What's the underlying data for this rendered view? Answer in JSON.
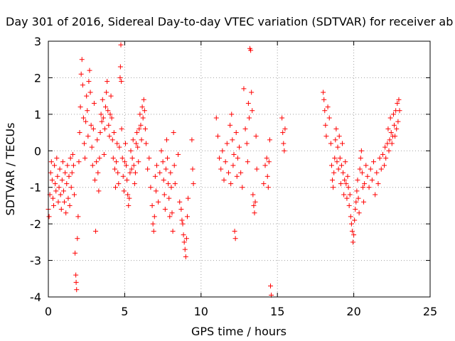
{
  "chart_data": {
    "type": "scatter",
    "title": "Day 301 of 2016, Sidereal Day-to-day VTEC variation (SDTVAR) for receiver ab",
    "xlabel": "GPS time / hours",
    "ylabel": "SDTVAR / TECUs",
    "xlim": [
      0,
      25
    ],
    "ylim": [
      -4,
      3
    ],
    "xticks": [
      0,
      5,
      10,
      15,
      20,
      25
    ],
    "yticks": [
      -4,
      -3,
      -2,
      -1,
      0,
      1,
      2,
      3
    ],
    "grid": true,
    "marker": "+",
    "series": [
      {
        "name": "SDTVAR",
        "color": "#ff0000",
        "points": [
          [
            0.0,
            -1.6
          ],
          [
            0.05,
            -1.8
          ],
          [
            0.1,
            -1.2
          ],
          [
            0.15,
            -0.6
          ],
          [
            0.2,
            -0.3
          ],
          [
            0.25,
            -0.8
          ],
          [
            0.3,
            -1.3
          ],
          [
            0.35,
            -1.5
          ],
          [
            0.4,
            -0.4
          ],
          [
            0.45,
            -0.9
          ],
          [
            0.5,
            -1.1
          ],
          [
            0.55,
            -0.2
          ],
          [
            0.6,
            -0.7
          ],
          [
            0.65,
            -1.4
          ],
          [
            0.7,
            -1.0
          ],
          [
            0.75,
            -0.5
          ],
          [
            0.8,
            -1.2
          ],
          [
            0.85,
            -1.6
          ],
          [
            0.9,
            -0.8
          ],
          [
            0.95,
            -0.3
          ],
          [
            1.0,
            -1.1
          ],
          [
            1.05,
            -1.4
          ],
          [
            1.1,
            -0.6
          ],
          [
            1.15,
            -1.7
          ],
          [
            1.2,
            -0.9
          ],
          [
            1.25,
            -0.4
          ],
          [
            1.3,
            -1.3
          ],
          [
            1.35,
            -0.7
          ],
          [
            1.4,
            -1.5
          ],
          [
            1.45,
            -0.2
          ],
          [
            1.5,
            -1.0
          ],
          [
            1.55,
            -0.6
          ],
          [
            1.6,
            -0.1
          ],
          [
            1.65,
            -0.4
          ],
          [
            1.7,
            -1.2
          ],
          [
            1.75,
            -2.8
          ],
          [
            1.8,
            -3.4
          ],
          [
            1.82,
            -3.6
          ],
          [
            1.85,
            -3.8
          ],
          [
            1.9,
            -2.4
          ],
          [
            1.95,
            -1.8
          ],
          [
            2.0,
            -0.3
          ],
          [
            2.05,
            0.5
          ],
          [
            2.1,
            1.2
          ],
          [
            2.15,
            2.1
          ],
          [
            2.2,
            2.5
          ],
          [
            2.25,
            1.8
          ],
          [
            2.3,
            0.9
          ],
          [
            2.35,
            0.2
          ],
          [
            2.4,
            -0.2
          ],
          [
            2.45,
            0.8
          ],
          [
            2.5,
            1.5
          ],
          [
            2.55,
            1.1
          ],
          [
            2.6,
            0.4
          ],
          [
            2.65,
            1.9
          ],
          [
            2.7,
            2.2
          ],
          [
            2.75,
            1.6
          ],
          [
            2.8,
            0.7
          ],
          [
            2.85,
            0.1
          ],
          [
            2.9,
            -0.4
          ],
          [
            2.95,
            0.6
          ],
          [
            3.0,
            1.3
          ],
          [
            3.05,
            -0.8
          ],
          [
            3.1,
            -2.2
          ],
          [
            3.15,
            -0.3
          ],
          [
            3.2,
            0.3
          ],
          [
            3.25,
            -0.6
          ],
          [
            3.3,
            -1.1
          ],
          [
            3.35,
            -0.2
          ],
          [
            3.4,
            0.5
          ],
          [
            3.45,
            1.0
          ],
          [
            3.5,
            0.8
          ],
          [
            3.55,
            1.4
          ],
          [
            3.6,
            0.9
          ],
          [
            3.65,
            -0.1
          ],
          [
            3.7,
            0.6
          ],
          [
            3.75,
            1.2
          ],
          [
            3.8,
            1.6
          ],
          [
            3.85,
            1.9
          ],
          [
            3.9,
            1.1
          ],
          [
            3.95,
            0.7
          ],
          [
            4.0,
            0.4
          ],
          [
            4.05,
            1.0
          ],
          [
            4.1,
            1.5
          ],
          [
            4.15,
            0.9
          ],
          [
            4.2,
            0.3
          ],
          [
            4.25,
            -0.2
          ],
          [
            4.3,
            0.5
          ],
          [
            4.35,
            -0.5
          ],
          [
            4.4,
            -1.0
          ],
          [
            4.45,
            -0.3
          ],
          [
            4.5,
            0.2
          ],
          [
            4.55,
            -0.6
          ],
          [
            4.6,
            -0.9
          ],
          [
            4.65,
            0.1
          ],
          [
            4.7,
            2.0
          ],
          [
            4.72,
            2.3
          ],
          [
            4.75,
            2.9
          ],
          [
            4.78,
            1.9
          ],
          [
            4.8,
            0.6
          ],
          [
            4.85,
            -0.2
          ],
          [
            4.9,
            -0.7
          ],
          [
            4.95,
            -1.1
          ],
          [
            5.0,
            -0.3
          ],
          [
            5.05,
            0.2
          ],
          [
            5.1,
            -0.4
          ],
          [
            5.15,
            -0.8
          ],
          [
            5.2,
            -1.2
          ],
          [
            5.25,
            -1.5
          ],
          [
            5.3,
            -1.3
          ],
          [
            5.35,
            -0.6
          ],
          [
            5.4,
            0.0
          ],
          [
            5.45,
            -0.5
          ],
          [
            5.5,
            -0.2
          ],
          [
            5.55,
            0.3
          ],
          [
            5.6,
            -0.4
          ],
          [
            5.65,
            -0.9
          ],
          [
            5.7,
            -0.6
          ],
          [
            5.75,
            0.2
          ],
          [
            5.8,
            0.5
          ],
          [
            5.85,
            0.1
          ],
          [
            5.9,
            -0.3
          ],
          [
            5.95,
            0.6
          ],
          [
            6.0,
            1.0
          ],
          [
            6.05,
            0.7
          ],
          [
            6.1,
            0.3
          ],
          [
            6.15,
            1.2
          ],
          [
            6.2,
            0.9
          ],
          [
            6.25,
            1.4
          ],
          [
            6.3,
            1.1
          ],
          [
            6.35,
            0.6
          ],
          [
            6.4,
            0.2
          ],
          [
            6.5,
            -0.5
          ],
          [
            6.6,
            -0.2
          ],
          [
            6.7,
            -1.0
          ],
          [
            6.8,
            -1.5
          ],
          [
            6.85,
            -2.0
          ],
          [
            6.9,
            -2.2
          ],
          [
            6.95,
            -1.8
          ],
          [
            7.0,
            -0.7
          ],
          [
            7.05,
            -1.1
          ],
          [
            7.1,
            -0.4
          ],
          [
            7.2,
            -1.4
          ],
          [
            7.3,
            -0.6
          ],
          [
            7.4,
            0.0
          ],
          [
            7.5,
            -0.3
          ],
          [
            7.55,
            -0.8
          ],
          [
            7.6,
            -1.2
          ],
          [
            7.65,
            -1.6
          ],
          [
            7.7,
            -0.5
          ],
          [
            7.75,
            0.3
          ],
          [
            7.8,
            -0.2
          ],
          [
            7.85,
            -0.9
          ],
          [
            7.9,
            -1.3
          ],
          [
            7.95,
            -1.8
          ],
          [
            8.0,
            -0.6
          ],
          [
            8.05,
            -1.0
          ],
          [
            8.1,
            -1.7
          ],
          [
            8.15,
            -2.2
          ],
          [
            8.2,
            0.5
          ],
          [
            8.25,
            -0.4
          ],
          [
            8.3,
            -0.9
          ],
          [
            8.5,
            -0.1
          ],
          [
            8.6,
            -1.4
          ],
          [
            8.7,
            -1.6
          ],
          [
            8.75,
            -1.9
          ],
          [
            8.8,
            -2.0
          ],
          [
            8.85,
            -2.3
          ],
          [
            8.9,
            -2.5
          ],
          [
            8.95,
            -2.7
          ],
          [
            9.0,
            -2.9
          ],
          [
            9.05,
            -2.4
          ],
          [
            9.1,
            -1.8
          ],
          [
            9.15,
            -1.3
          ],
          [
            9.4,
            0.3
          ],
          [
            9.45,
            -0.5
          ],
          [
            9.5,
            -0.9
          ],
          [
            11.0,
            0.9
          ],
          [
            11.1,
            0.4
          ],
          [
            11.2,
            -0.2
          ],
          [
            11.3,
            -0.5
          ],
          [
            11.4,
            0.0
          ],
          [
            11.5,
            -0.8
          ],
          [
            11.6,
            -0.3
          ],
          [
            11.7,
            0.2
          ],
          [
            11.8,
            -0.6
          ],
          [
            11.9,
            0.7
          ],
          [
            11.95,
            -0.9
          ],
          [
            12.0,
            1.0
          ],
          [
            12.05,
            0.3
          ],
          [
            12.1,
            -0.4
          ],
          [
            12.15,
            -0.1
          ],
          [
            12.2,
            -2.2
          ],
          [
            12.25,
            -2.4
          ],
          [
            12.3,
            0.5
          ],
          [
            12.35,
            -0.7
          ],
          [
            12.4,
            -0.2
          ],
          [
            12.5,
            0.1
          ],
          [
            12.6,
            -0.6
          ],
          [
            12.7,
            -1.0
          ],
          [
            12.8,
            1.7
          ],
          [
            12.9,
            0.6
          ],
          [
            13.0,
            0.2
          ],
          [
            13.05,
            -0.3
          ],
          [
            13.1,
            1.3
          ],
          [
            13.15,
            0.9
          ],
          [
            13.2,
            2.8
          ],
          [
            13.25,
            2.75
          ],
          [
            13.3,
            1.6
          ],
          [
            13.35,
            1.1
          ],
          [
            13.4,
            -1.2
          ],
          [
            13.45,
            -1.5
          ],
          [
            13.5,
            -1.7
          ],
          [
            13.55,
            -1.4
          ],
          [
            13.6,
            0.4
          ],
          [
            13.65,
            -0.5
          ],
          [
            14.1,
            -0.9
          ],
          [
            14.2,
            -0.4
          ],
          [
            14.3,
            -0.2
          ],
          [
            14.35,
            -0.7
          ],
          [
            14.4,
            -1.0
          ],
          [
            14.45,
            -0.3
          ],
          [
            14.5,
            0.3
          ],
          [
            14.55,
            -3.7
          ],
          [
            14.6,
            -3.95
          ],
          [
            15.3,
            0.9
          ],
          [
            15.35,
            0.5
          ],
          [
            15.4,
            0.2
          ],
          [
            15.45,
            0.0
          ],
          [
            15.5,
            0.6
          ],
          [
            18.0,
            1.6
          ],
          [
            18.05,
            1.4
          ],
          [
            18.1,
            1.1
          ],
          [
            18.15,
            0.7
          ],
          [
            18.2,
            0.4
          ],
          [
            18.3,
            1.2
          ],
          [
            18.4,
            0.9
          ],
          [
            18.5,
            0.2
          ],
          [
            18.55,
            -0.4
          ],
          [
            18.6,
            -0.8
          ],
          [
            18.65,
            -1.0
          ],
          [
            18.7,
            -0.6
          ],
          [
            18.75,
            -0.2
          ],
          [
            18.8,
            0.3
          ],
          [
            18.85,
            0.6
          ],
          [
            18.9,
            -0.3
          ],
          [
            18.95,
            0.1
          ],
          [
            19.0,
            -0.5
          ],
          [
            19.05,
            0.4
          ],
          [
            19.1,
            -0.2
          ],
          [
            19.15,
            -0.9
          ],
          [
            19.2,
            -0.4
          ],
          [
            19.25,
            0.2
          ],
          [
            19.3,
            -0.6
          ],
          [
            19.35,
            -1.2
          ],
          [
            19.4,
            -0.8
          ],
          [
            19.45,
            -0.3
          ],
          [
            19.5,
            -0.9
          ],
          [
            19.55,
            -1.3
          ],
          [
            19.6,
            -0.7
          ],
          [
            19.65,
            -1.0
          ],
          [
            19.7,
            -1.5
          ],
          [
            19.75,
            -1.2
          ],
          [
            19.8,
            -1.8
          ],
          [
            19.85,
            -2.0
          ],
          [
            19.9,
            -2.2
          ],
          [
            19.95,
            -2.5
          ],
          [
            20.0,
            -2.3
          ],
          [
            20.05,
            -1.9
          ],
          [
            20.1,
            -1.6
          ],
          [
            20.15,
            -1.4
          ],
          [
            20.2,
            -1.1
          ],
          [
            20.25,
            -0.8
          ],
          [
            20.3,
            -1.3
          ],
          [
            20.35,
            -1.7
          ],
          [
            20.4,
            -0.5
          ],
          [
            20.45,
            -0.2
          ],
          [
            20.5,
            0.0
          ],
          [
            20.55,
            -0.6
          ],
          [
            20.6,
            -1.0
          ],
          [
            20.65,
            -1.4
          ],
          [
            20.7,
            -0.9
          ],
          [
            20.8,
            -0.4
          ],
          [
            20.9,
            -0.7
          ],
          [
            21.0,
            -1.0
          ],
          [
            21.1,
            -0.5
          ],
          [
            21.2,
            -0.8
          ],
          [
            21.3,
            -0.3
          ],
          [
            21.4,
            -1.2
          ],
          [
            21.5,
            -0.6
          ],
          [
            21.6,
            -0.9
          ],
          [
            21.7,
            -0.2
          ],
          [
            21.8,
            -0.5
          ],
          [
            21.9,
            -0.1
          ],
          [
            22.0,
            -0.4
          ],
          [
            22.05,
            0.1
          ],
          [
            22.1,
            -0.2
          ],
          [
            22.2,
            0.2
          ],
          [
            22.25,
            0.6
          ],
          [
            22.3,
            0.0
          ],
          [
            22.35,
            0.3
          ],
          [
            22.4,
            0.9
          ],
          [
            22.45,
            0.5
          ],
          [
            22.5,
            0.2
          ],
          [
            22.55,
            0.4
          ],
          [
            22.6,
            1.0
          ],
          [
            22.65,
            0.7
          ],
          [
            22.7,
            0.4
          ],
          [
            22.75,
            1.1
          ],
          [
            22.8,
            0.6
          ],
          [
            22.85,
            1.3
          ],
          [
            22.9,
            0.8
          ],
          [
            22.95,
            1.4
          ],
          [
            23.0,
            1.1
          ]
        ]
      }
    ]
  }
}
